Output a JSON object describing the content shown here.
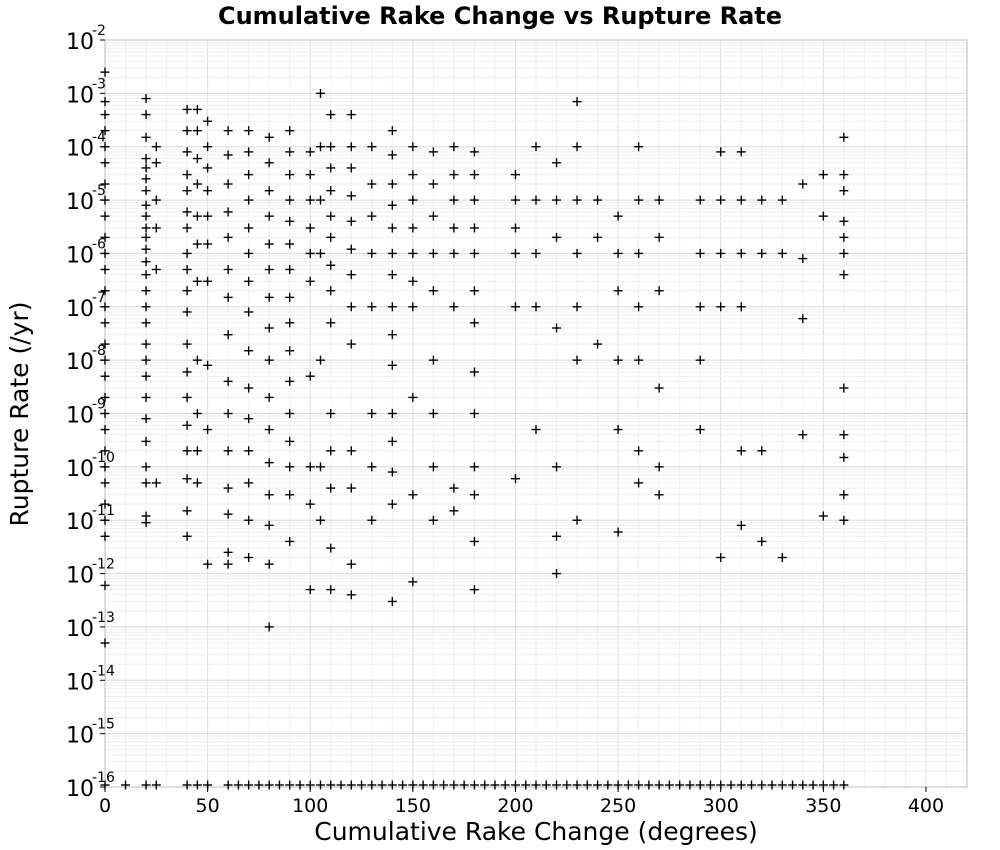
{
  "chart_data": {
    "type": "scatter",
    "title": "Cumulative Rake Change vs Rupture Rate",
    "xlabel": "Cumulative Rake Change (degrees)",
    "ylabel": "Rupture Rate (/yr)",
    "xlim": [
      0,
      420
    ],
    "ylim_exponent": [
      -16,
      -2
    ],
    "y_scale": "log",
    "grid": true,
    "marker": "+",
    "marker_color": "#000000",
    "x_ticks": [
      {
        "value": 0,
        "label": "0"
      },
      {
        "value": 50,
        "label": "50"
      },
      {
        "value": 100,
        "label": "100"
      },
      {
        "value": 150,
        "label": "150"
      },
      {
        "value": 200,
        "label": "200"
      },
      {
        "value": 250,
        "label": "250"
      },
      {
        "value": 300,
        "label": "300"
      },
      {
        "value": 350,
        "label": "350"
      },
      {
        "value": 400,
        "label": "400"
      }
    ],
    "y_ticks": [
      {
        "exp": -2,
        "base": "10",
        "sup": "-2"
      },
      {
        "exp": -3,
        "base": "10",
        "sup": "-3"
      },
      {
        "exp": -4,
        "base": "10",
        "sup": "-4"
      },
      {
        "exp": -5,
        "base": "10",
        "sup": "-5"
      },
      {
        "exp": -6,
        "base": "10",
        "sup": "-6"
      },
      {
        "exp": -7,
        "base": "10",
        "sup": "-7"
      },
      {
        "exp": -8,
        "base": "10",
        "sup": "-8"
      },
      {
        "exp": -9,
        "base": "10",
        "sup": "-9"
      },
      {
        "exp": -10,
        "base": "10",
        "sup": "-10"
      },
      {
        "exp": -11,
        "base": "10",
        "sup": "-11"
      },
      {
        "exp": -12,
        "base": "10",
        "sup": "-12"
      },
      {
        "exp": -13,
        "base": "10",
        "sup": "-13"
      },
      {
        "exp": -14,
        "base": "10",
        "sup": "-14"
      },
      {
        "exp": -15,
        "base": "10",
        "sup": "-15"
      },
      {
        "exp": -16,
        "base": "10",
        "sup": "-16"
      }
    ],
    "points": [
      [
        0,
        0.0025
      ],
      [
        0,
        0.0007
      ],
      [
        0,
        0.0004
      ],
      [
        0,
        0.0002
      ],
      [
        0,
        0.0001
      ],
      [
        0,
        5e-05
      ],
      [
        0,
        2e-05
      ],
      [
        0,
        1e-05
      ],
      [
        0,
        5e-06
      ],
      [
        0,
        2e-06
      ],
      [
        0,
        1e-06
      ],
      [
        0,
        5e-07
      ],
      [
        0,
        2e-07
      ],
      [
        0,
        1e-07
      ],
      [
        0,
        5e-08
      ],
      [
        0,
        2e-08
      ],
      [
        0,
        1e-08
      ],
      [
        0,
        5e-09
      ],
      [
        0,
        2e-09
      ],
      [
        0,
        1e-09
      ],
      [
        0,
        5e-10
      ],
      [
        0,
        2e-10
      ],
      [
        0,
        1e-10
      ],
      [
        0,
        5e-11
      ],
      [
        0,
        2e-11
      ],
      [
        0,
        1e-11
      ],
      [
        0,
        5e-12
      ],
      [
        0,
        6e-13
      ],
      [
        0,
        5e-14
      ],
      [
        20,
        0.0008
      ],
      [
        20,
        0.0004
      ],
      [
        20,
        0.00015
      ],
      [
        20,
        6e-05
      ],
      [
        20,
        4e-05
      ],
      [
        20,
        2.5e-05
      ],
      [
        20,
        1.5e-05
      ],
      [
        20,
        8e-06
      ],
      [
        20,
        5e-06
      ],
      [
        20,
        3e-06
      ],
      [
        20,
        2e-06
      ],
      [
        20,
        1.2e-06
      ],
      [
        20,
        7e-07
      ],
      [
        20,
        4e-07
      ],
      [
        20,
        2e-07
      ],
      [
        20,
        1e-07
      ],
      [
        20,
        5e-08
      ],
      [
        20,
        2e-08
      ],
      [
        20,
        1e-08
      ],
      [
        20,
        5e-09
      ],
      [
        20,
        2e-09
      ],
      [
        20,
        8e-10
      ],
      [
        20,
        3e-10
      ],
      [
        20,
        1e-10
      ],
      [
        20,
        5e-11
      ],
      [
        20,
        1.2e-11
      ],
      [
        20,
        9e-12
      ],
      [
        25,
        0.0001
      ],
      [
        25,
        5e-05
      ],
      [
        25,
        1e-05
      ],
      [
        25,
        3e-06
      ],
      [
        25,
        5e-07
      ],
      [
        25,
        5e-11
      ],
      [
        40,
        0.0005
      ],
      [
        40,
        0.0002
      ],
      [
        40,
        8e-05
      ],
      [
        40,
        3e-05
      ],
      [
        40,
        1.5e-05
      ],
      [
        40,
        6e-06
      ],
      [
        40,
        3e-06
      ],
      [
        40,
        1e-06
      ],
      [
        40,
        5e-07
      ],
      [
        40,
        2e-07
      ],
      [
        40,
        8e-08
      ],
      [
        40,
        2e-08
      ],
      [
        40,
        6e-09
      ],
      [
        40,
        2e-09
      ],
      [
        40,
        6e-10
      ],
      [
        40,
        2e-10
      ],
      [
        40,
        6e-11
      ],
      [
        40,
        1.5e-11
      ],
      [
        40,
        5e-12
      ],
      [
        45,
        0.0005
      ],
      [
        45,
        0.0002
      ],
      [
        45,
        6e-05
      ],
      [
        45,
        2e-05
      ],
      [
        45,
        5e-06
      ],
      [
        45,
        1.5e-06
      ],
      [
        45,
        3e-07
      ],
      [
        45,
        1e-08
      ],
      [
        45,
        1e-09
      ],
      [
        45,
        2e-10
      ],
      [
        45,
        5e-11
      ],
      [
        50,
        0.0003
      ],
      [
        50,
        0.0001
      ],
      [
        50,
        4e-05
      ],
      [
        50,
        1.5e-05
      ],
      [
        50,
        5e-06
      ],
      [
        50,
        1.5e-06
      ],
      [
        50,
        3e-07
      ],
      [
        50,
        8e-09
      ],
      [
        50,
        5e-10
      ],
      [
        50,
        1.5e-12
      ],
      [
        60,
        0.0002
      ],
      [
        60,
        7e-05
      ],
      [
        60,
        2e-05
      ],
      [
        60,
        6e-06
      ],
      [
        60,
        2e-06
      ],
      [
        60,
        5e-07
      ],
      [
        60,
        1.5e-07
      ],
      [
        60,
        3e-08
      ],
      [
        60,
        4e-09
      ],
      [
        60,
        1e-09
      ],
      [
        60,
        2e-10
      ],
      [
        60,
        4e-11
      ],
      [
        60,
        1.3e-11
      ],
      [
        60,
        2.5e-12
      ],
      [
        60,
        1.5e-12
      ],
      [
        70,
        0.0002
      ],
      [
        70,
        8e-05
      ],
      [
        70,
        3e-05
      ],
      [
        70,
        1e-05
      ],
      [
        70,
        3e-06
      ],
      [
        70,
        1e-06
      ],
      [
        70,
        3e-07
      ],
      [
        70,
        8e-08
      ],
      [
        70,
        1.5e-08
      ],
      [
        70,
        3e-09
      ],
      [
        70,
        8e-10
      ],
      [
        70,
        2e-10
      ],
      [
        70,
        5e-11
      ],
      [
        70,
        1e-11
      ],
      [
        70,
        2e-12
      ],
      [
        80,
        0.00015
      ],
      [
        80,
        5e-05
      ],
      [
        80,
        1.5e-05
      ],
      [
        80,
        5e-06
      ],
      [
        80,
        1.5e-06
      ],
      [
        80,
        5e-07
      ],
      [
        80,
        1.5e-07
      ],
      [
        80,
        4e-08
      ],
      [
        80,
        1e-08
      ],
      [
        80,
        2e-09
      ],
      [
        80,
        5e-10
      ],
      [
        80,
        1.2e-10
      ],
      [
        80,
        3e-11
      ],
      [
        80,
        8e-12
      ],
      [
        80,
        1.5e-12
      ],
      [
        80,
        1e-13
      ],
      [
        90,
        0.0002
      ],
      [
        90,
        8e-05
      ],
      [
        90,
        3e-05
      ],
      [
        90,
        1e-05
      ],
      [
        90,
        4e-06
      ],
      [
        90,
        1.5e-06
      ],
      [
        90,
        5e-07
      ],
      [
        90,
        1.5e-07
      ],
      [
        90,
        5e-08
      ],
      [
        90,
        1.5e-08
      ],
      [
        90,
        4e-09
      ],
      [
        90,
        1e-09
      ],
      [
        90,
        3e-10
      ],
      [
        90,
        1e-10
      ],
      [
        90,
        3e-11
      ],
      [
        90,
        4e-12
      ],
      [
        100,
        8e-05
      ],
      [
        100,
        3e-05
      ],
      [
        100,
        1e-05
      ],
      [
        100,
        3e-06
      ],
      [
        100,
        1e-06
      ],
      [
        100,
        3e-07
      ],
      [
        100,
        5e-09
      ],
      [
        100,
        1e-10
      ],
      [
        100,
        2e-11
      ],
      [
        100,
        5e-13
      ],
      [
        105,
        0.001
      ],
      [
        105,
        0.0001
      ],
      [
        105,
        1e-05
      ],
      [
        105,
        1e-06
      ],
      [
        105,
        1e-08
      ],
      [
        105,
        1e-10
      ],
      [
        105,
        1e-11
      ],
      [
        110,
        0.0004
      ],
      [
        110,
        0.0001
      ],
      [
        110,
        4e-05
      ],
      [
        110,
        1.5e-05
      ],
      [
        110,
        5e-06
      ],
      [
        110,
        2e-06
      ],
      [
        110,
        6e-07
      ],
      [
        110,
        2e-07
      ],
      [
        110,
        5e-08
      ],
      [
        110,
        1e-09
      ],
      [
        110,
        2e-10
      ],
      [
        110,
        4e-11
      ],
      [
        110,
        3e-12
      ],
      [
        110,
        5e-13
      ],
      [
        120,
        0.0004
      ],
      [
        120,
        0.0001
      ],
      [
        120,
        4e-05
      ],
      [
        120,
        1.2e-05
      ],
      [
        120,
        4e-06
      ],
      [
        120,
        1.2e-06
      ],
      [
        120,
        4e-07
      ],
      [
        120,
        1e-07
      ],
      [
        120,
        2e-08
      ],
      [
        120,
        2e-10
      ],
      [
        120,
        4e-11
      ],
      [
        120,
        1.5e-12
      ],
      [
        120,
        4e-13
      ],
      [
        130,
        0.0001
      ],
      [
        130,
        2e-05
      ],
      [
        130,
        5e-06
      ],
      [
        130,
        1e-06
      ],
      [
        130,
        1e-07
      ],
      [
        130,
        1e-09
      ],
      [
        130,
        1e-10
      ],
      [
        130,
        1e-11
      ],
      [
        140,
        0.0002
      ],
      [
        140,
        7e-05
      ],
      [
        140,
        2e-05
      ],
      [
        140,
        8e-06
      ],
      [
        140,
        3e-06
      ],
      [
        140,
        1e-06
      ],
      [
        140,
        4e-07
      ],
      [
        140,
        1e-07
      ],
      [
        140,
        3e-08
      ],
      [
        140,
        8e-09
      ],
      [
        140,
        1e-09
      ],
      [
        140,
        3e-10
      ],
      [
        140,
        8e-11
      ],
      [
        140,
        2e-11
      ],
      [
        140,
        3e-13
      ],
      [
        150,
        0.0001
      ],
      [
        150,
        3e-05
      ],
      [
        150,
        1e-05
      ],
      [
        150,
        3e-06
      ],
      [
        150,
        1e-06
      ],
      [
        150,
        3e-07
      ],
      [
        150,
        1e-07
      ],
      [
        150,
        2e-09
      ],
      [
        150,
        3e-11
      ],
      [
        150,
        7e-13
      ],
      [
        160,
        8e-05
      ],
      [
        160,
        2e-05
      ],
      [
        160,
        5e-06
      ],
      [
        160,
        1e-06
      ],
      [
        160,
        2e-07
      ],
      [
        160,
        1e-08
      ],
      [
        160,
        1e-09
      ],
      [
        160,
        1e-10
      ],
      [
        160,
        1e-11
      ],
      [
        170,
        0.0001
      ],
      [
        170,
        3e-05
      ],
      [
        170,
        1e-05
      ],
      [
        170,
        3e-06
      ],
      [
        170,
        1e-06
      ],
      [
        170,
        1e-07
      ],
      [
        170,
        4e-11
      ],
      [
        170,
        1.5e-11
      ],
      [
        180,
        8e-05
      ],
      [
        180,
        3e-05
      ],
      [
        180,
        1e-05
      ],
      [
        180,
        3e-06
      ],
      [
        180,
        1e-06
      ],
      [
        180,
        2e-07
      ],
      [
        180,
        5e-08
      ],
      [
        180,
        6e-09
      ],
      [
        180,
        1e-09
      ],
      [
        180,
        1e-10
      ],
      [
        180,
        3e-11
      ],
      [
        180,
        4e-12
      ],
      [
        180,
        5e-13
      ],
      [
        200,
        3e-05
      ],
      [
        200,
        1e-05
      ],
      [
        200,
        3e-06
      ],
      [
        200,
        1e-06
      ],
      [
        200,
        1e-07
      ],
      [
        200,
        6e-11
      ],
      [
        210,
        0.0001
      ],
      [
        210,
        1e-05
      ],
      [
        210,
        1e-06
      ],
      [
        210,
        1e-07
      ],
      [
        210,
        5e-10
      ],
      [
        220,
        5e-05
      ],
      [
        220,
        1e-05
      ],
      [
        220,
        2e-06
      ],
      [
        220,
        4e-08
      ],
      [
        220,
        1e-10
      ],
      [
        220,
        5e-12
      ],
      [
        220,
        1e-12
      ],
      [
        230,
        0.0007
      ],
      [
        230,
        0.0001
      ],
      [
        230,
        1e-05
      ],
      [
        230,
        1e-06
      ],
      [
        230,
        1e-07
      ],
      [
        230,
        1e-08
      ],
      [
        230,
        1e-11
      ],
      [
        240,
        1e-05
      ],
      [
        240,
        2e-06
      ],
      [
        240,
        2e-08
      ],
      [
        250,
        5e-06
      ],
      [
        250,
        1e-06
      ],
      [
        250,
        2e-07
      ],
      [
        250,
        1e-08
      ],
      [
        250,
        5e-10
      ],
      [
        250,
        6e-12
      ],
      [
        260,
        0.0001
      ],
      [
        260,
        1e-05
      ],
      [
        260,
        1e-06
      ],
      [
        260,
        1e-07
      ],
      [
        260,
        1e-08
      ],
      [
        260,
        2e-10
      ],
      [
        260,
        5e-11
      ],
      [
        270,
        1e-05
      ],
      [
        270,
        2e-06
      ],
      [
        270,
        2e-07
      ],
      [
        270,
        3e-09
      ],
      [
        270,
        1e-10
      ],
      [
        270,
        3e-11
      ],
      [
        290,
        1e-05
      ],
      [
        290,
        1e-06
      ],
      [
        290,
        1e-07
      ],
      [
        290,
        1e-08
      ],
      [
        290,
        5e-10
      ],
      [
        300,
        8e-05
      ],
      [
        300,
        1e-05
      ],
      [
        300,
        1e-06
      ],
      [
        300,
        1e-07
      ],
      [
        300,
        2e-12
      ],
      [
        310,
        8e-05
      ],
      [
        310,
        1e-05
      ],
      [
        310,
        1e-06
      ],
      [
        310,
        1e-07
      ],
      [
        310,
        2e-10
      ],
      [
        310,
        8e-12
      ],
      [
        320,
        1e-05
      ],
      [
        320,
        1e-06
      ],
      [
        320,
        2e-10
      ],
      [
        320,
        4e-12
      ],
      [
        330,
        1e-05
      ],
      [
        330,
        1e-06
      ],
      [
        330,
        2e-12
      ],
      [
        340,
        2e-05
      ],
      [
        340,
        8e-07
      ],
      [
        340,
        6e-08
      ],
      [
        340,
        4e-10
      ],
      [
        350,
        3e-05
      ],
      [
        350,
        5e-06
      ],
      [
        350,
        1.2e-11
      ],
      [
        360,
        0.00015
      ],
      [
        360,
        3e-05
      ],
      [
        360,
        1.5e-05
      ],
      [
        360,
        4e-06
      ],
      [
        360,
        2e-06
      ],
      [
        360,
        1e-06
      ],
      [
        360,
        4e-07
      ],
      [
        360,
        3e-09
      ],
      [
        360,
        4e-10
      ],
      [
        360,
        1.5e-10
      ],
      [
        360,
        3e-11
      ],
      [
        360,
        1e-11
      ]
    ],
    "floor_points_x": [
      0,
      10,
      20,
      25,
      40,
      45,
      50,
      60,
      65,
      70,
      75,
      80,
      85,
      90,
      95,
      100,
      105,
      110,
      115,
      120,
      125,
      130,
      135,
      140,
      145,
      150,
      155,
      160,
      165,
      170,
      175,
      180,
      185,
      190,
      195,
      200,
      205,
      210,
      215,
      220,
      225,
      230,
      235,
      240,
      245,
      250,
      255,
      260,
      265,
      270,
      275,
      280,
      285,
      290,
      295,
      300,
      305,
      310,
      315,
      320,
      325,
      330,
      335,
      340,
      345,
      350,
      355,
      360
    ]
  }
}
